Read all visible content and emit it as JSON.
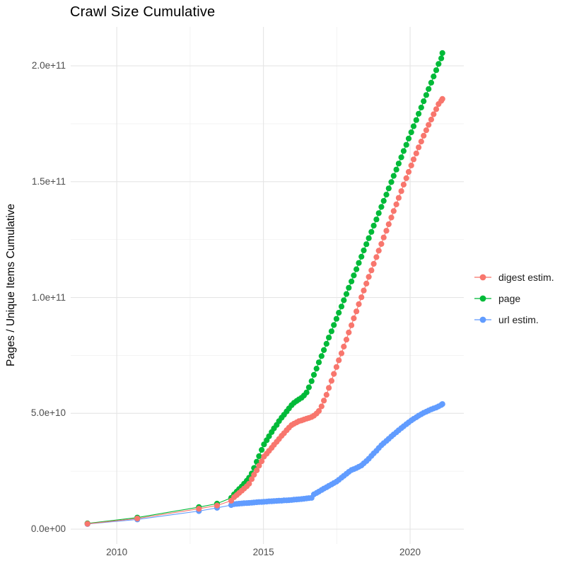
{
  "title": "Crawl Size Cumulative",
  "ylabel": "Pages / Unique Items Cumulative",
  "colors": {
    "digest_estim": "#F8766D",
    "page": "#00BA38",
    "url_estim": "#619CFF",
    "grid_major": "#E5E5E5",
    "grid_minor": "#F2F2F2",
    "tick_label": "#4d4d4d",
    "background": "#ffffff"
  },
  "legend": {
    "items": [
      {
        "id": "digest-estim",
        "label": "digest estim.",
        "color": "#F8766D"
      },
      {
        "id": "page",
        "label": "page",
        "color": "#00BA38"
      },
      {
        "id": "url-estim",
        "label": "url estim.",
        "color": "#619CFF"
      }
    ]
  },
  "chart_data": {
    "type": "scatter",
    "title": "Crawl Size Cumulative",
    "xlabel": "",
    "ylabel": "Pages / Unique Items Cumulative",
    "legend_position": "right",
    "grid": true,
    "unit_note": "y values stored in billions (1e9); axis shows scientific notation",
    "xlim": [
      2008.43,
      2021.83
    ],
    "ylim_e9": [
      -6.4,
      216.8
    ],
    "x_ticks": [
      {
        "value": 2010,
        "label": "2010"
      },
      {
        "value": 2015,
        "label": "2015"
      },
      {
        "value": 2020,
        "label": "2020"
      }
    ],
    "x_minor_ticks": [
      2012.5,
      2017.5
    ],
    "y_ticks": [
      {
        "value_e9": 0,
        "label": "0.0e+00"
      },
      {
        "value_e9": 50,
        "label": "5.0e+10"
      },
      {
        "value_e9": 100,
        "label": "1.0e+11"
      },
      {
        "value_e9": 150,
        "label": "1.5e+11"
      },
      {
        "value_e9": 200,
        "label": "2.0e+11"
      }
    ],
    "y_minor_ticks_e9": [
      25,
      75,
      125,
      175
    ],
    "draw_order": [
      2,
      1,
      0
    ],
    "point_radius": 4.1,
    "series": [
      {
        "name": "digest estim.",
        "color": "#F8766D",
        "points": [
          [
            2009.0,
            2.3
          ],
          [
            2010.7,
            4.6
          ],
          [
            2012.8,
            8.8
          ],
          [
            2013.42,
            10.2
          ],
          [
            2013.9,
            12.3
          ],
          [
            2014.0,
            13.8
          ],
          [
            2014.09,
            14.7
          ],
          [
            2014.17,
            15.6
          ],
          [
            2014.26,
            16.6
          ],
          [
            2014.34,
            17.5
          ],
          [
            2014.43,
            18.5
          ],
          [
            2014.51,
            19.6
          ],
          [
            2014.6,
            21.6
          ],
          [
            2014.68,
            23.5
          ],
          [
            2014.77,
            25.4
          ],
          [
            2014.85,
            27.4
          ],
          [
            2014.94,
            29.3
          ],
          [
            2015.02,
            31.3
          ],
          [
            2015.11,
            32.6
          ],
          [
            2015.19,
            33.8
          ],
          [
            2015.28,
            35.1
          ],
          [
            2015.36,
            36.4
          ],
          [
            2015.45,
            37.7
          ],
          [
            2015.53,
            38.9
          ],
          [
            2015.62,
            40.3
          ],
          [
            2015.7,
            41.4
          ],
          [
            2015.79,
            42.7
          ],
          [
            2015.87,
            43.8
          ],
          [
            2015.96,
            44.9
          ],
          [
            2016.04,
            45.5
          ],
          [
            2016.13,
            46.1
          ],
          [
            2016.21,
            46.6
          ],
          [
            2016.3,
            46.9
          ],
          [
            2016.38,
            47.3
          ],
          [
            2016.47,
            47.7
          ],
          [
            2016.55,
            48.0
          ],
          [
            2016.64,
            48.4
          ],
          [
            2016.72,
            49.0
          ],
          [
            2016.81,
            49.9
          ],
          [
            2016.89,
            51.0
          ],
          [
            2016.98,
            53.0
          ],
          [
            2017.06,
            55.5
          ],
          [
            2017.15,
            58.0
          ],
          [
            2017.23,
            61.0
          ],
          [
            2017.32,
            64.0
          ],
          [
            2017.4,
            67.0
          ],
          [
            2017.49,
            70.0
          ],
          [
            2017.57,
            72.9
          ],
          [
            2017.66,
            75.9
          ],
          [
            2017.74,
            78.8
          ],
          [
            2017.83,
            81.8
          ],
          [
            2017.91,
            84.9
          ],
          [
            2018.0,
            88.0
          ],
          [
            2018.08,
            91.0
          ],
          [
            2018.17,
            94.0
          ],
          [
            2018.25,
            97.1
          ],
          [
            2018.34,
            100.1
          ],
          [
            2018.42,
            103.0
          ],
          [
            2018.51,
            106.0
          ],
          [
            2018.59,
            108.9
          ],
          [
            2018.68,
            111.7
          ],
          [
            2018.76,
            114.5
          ],
          [
            2018.85,
            117.4
          ],
          [
            2018.93,
            120.2
          ],
          [
            2019.02,
            123.1
          ],
          [
            2019.1,
            125.9
          ],
          [
            2019.19,
            128.8
          ],
          [
            2019.27,
            131.6
          ],
          [
            2019.36,
            134.5
          ],
          [
            2019.44,
            137.3
          ],
          [
            2019.53,
            140.2
          ],
          [
            2019.61,
            143.0
          ],
          [
            2019.7,
            145.9
          ],
          [
            2019.78,
            148.7
          ],
          [
            2019.87,
            151.5
          ],
          [
            2019.95,
            154.2
          ],
          [
            2020.04,
            157.0
          ],
          [
            2020.12,
            159.6
          ],
          [
            2020.21,
            162.2
          ],
          [
            2020.29,
            164.8
          ],
          [
            2020.38,
            167.3
          ],
          [
            2020.46,
            169.8
          ],
          [
            2020.55,
            172.2
          ],
          [
            2020.63,
            174.5
          ],
          [
            2020.72,
            176.8
          ],
          [
            2020.8,
            179.1
          ],
          [
            2020.89,
            181.3
          ],
          [
            2020.97,
            183.5
          ],
          [
            2021.06,
            184.9
          ],
          [
            2021.1,
            185.7
          ]
        ]
      },
      {
        "name": "page",
        "color": "#00BA38",
        "points": [
          [
            2009.0,
            2.5
          ],
          [
            2010.7,
            5.0
          ],
          [
            2012.8,
            9.5
          ],
          [
            2013.42,
            11.0
          ],
          [
            2013.9,
            13.5
          ],
          [
            2014.0,
            15.0
          ],
          [
            2014.09,
            16.2
          ],
          [
            2014.17,
            17.3
          ],
          [
            2014.26,
            18.4
          ],
          [
            2014.34,
            19.6
          ],
          [
            2014.43,
            20.9
          ],
          [
            2014.51,
            22.2
          ],
          [
            2014.6,
            24.0
          ],
          [
            2014.68,
            26.4
          ],
          [
            2014.77,
            29.1
          ],
          [
            2014.85,
            31.5
          ],
          [
            2014.94,
            34.2
          ],
          [
            2015.02,
            36.6
          ],
          [
            2015.11,
            38.4
          ],
          [
            2015.19,
            40.1
          ],
          [
            2015.28,
            41.9
          ],
          [
            2015.36,
            43.5
          ],
          [
            2015.45,
            45.0
          ],
          [
            2015.53,
            46.6
          ],
          [
            2015.62,
            48.1
          ],
          [
            2015.7,
            49.4
          ],
          [
            2015.79,
            50.8
          ],
          [
            2015.87,
            52.1
          ],
          [
            2015.96,
            53.5
          ],
          [
            2016.04,
            54.5
          ],
          [
            2016.13,
            55.3
          ],
          [
            2016.21,
            56.0
          ],
          [
            2016.3,
            56.7
          ],
          [
            2016.38,
            57.7
          ],
          [
            2016.47,
            59.0
          ],
          [
            2016.55,
            61.2
          ],
          [
            2016.64,
            63.9
          ],
          [
            2016.72,
            66.6
          ],
          [
            2016.81,
            69.3
          ],
          [
            2016.89,
            72.0
          ],
          [
            2016.98,
            74.7
          ],
          [
            2017.06,
            77.3
          ],
          [
            2017.15,
            80.0
          ],
          [
            2017.23,
            82.7
          ],
          [
            2017.32,
            85.4
          ],
          [
            2017.4,
            88.1
          ],
          [
            2017.49,
            90.8
          ],
          [
            2017.57,
            93.4
          ],
          [
            2017.66,
            96.1
          ],
          [
            2017.74,
            98.8
          ],
          [
            2017.83,
            101.5
          ],
          [
            2017.91,
            104.2
          ],
          [
            2018.0,
            106.9
          ],
          [
            2018.08,
            109.5
          ],
          [
            2018.17,
            112.2
          ],
          [
            2018.25,
            114.9
          ],
          [
            2018.34,
            117.6
          ],
          [
            2018.42,
            120.3
          ],
          [
            2018.51,
            123.0
          ],
          [
            2018.59,
            125.6
          ],
          [
            2018.68,
            128.3
          ],
          [
            2018.76,
            131.0
          ],
          [
            2018.85,
            133.7
          ],
          [
            2018.93,
            136.4
          ],
          [
            2019.02,
            139.1
          ],
          [
            2019.1,
            141.7
          ],
          [
            2019.19,
            144.4
          ],
          [
            2019.27,
            147.1
          ],
          [
            2019.36,
            149.8
          ],
          [
            2019.44,
            152.5
          ],
          [
            2019.53,
            155.2
          ],
          [
            2019.61,
            157.8
          ],
          [
            2019.7,
            160.5
          ],
          [
            2019.78,
            163.2
          ],
          [
            2019.87,
            165.9
          ],
          [
            2019.95,
            168.6
          ],
          [
            2020.04,
            171.3
          ],
          [
            2020.12,
            173.9
          ],
          [
            2020.21,
            176.6
          ],
          [
            2020.29,
            179.3
          ],
          [
            2020.38,
            182.0
          ],
          [
            2020.46,
            184.7
          ],
          [
            2020.55,
            187.4
          ],
          [
            2020.63,
            190.0
          ],
          [
            2020.72,
            192.7
          ],
          [
            2020.8,
            195.4
          ],
          [
            2020.89,
            198.1
          ],
          [
            2020.97,
            200.8
          ],
          [
            2021.06,
            203.2
          ],
          [
            2021.1,
            205.5
          ]
        ]
      },
      {
        "name": "url estim.",
        "color": "#619CFF",
        "points": [
          [
            2009.0,
            2.2
          ],
          [
            2010.7,
            4.2
          ],
          [
            2012.8,
            7.8
          ],
          [
            2013.42,
            9.2
          ],
          [
            2013.9,
            10.4
          ],
          [
            2014.0,
            10.8
          ],
          [
            2014.09,
            10.9
          ],
          [
            2014.17,
            11.0
          ],
          [
            2014.26,
            11.1
          ],
          [
            2014.34,
            11.2
          ],
          [
            2014.43,
            11.25
          ],
          [
            2014.51,
            11.3
          ],
          [
            2014.6,
            11.4
          ],
          [
            2014.68,
            11.5
          ],
          [
            2014.77,
            11.6
          ],
          [
            2014.85,
            11.7
          ],
          [
            2014.94,
            11.75
          ],
          [
            2015.02,
            11.8
          ],
          [
            2015.11,
            11.9
          ],
          [
            2015.19,
            12.0
          ],
          [
            2015.28,
            12.05
          ],
          [
            2015.36,
            12.1
          ],
          [
            2015.45,
            12.2
          ],
          [
            2015.53,
            12.25
          ],
          [
            2015.62,
            12.3
          ],
          [
            2015.7,
            12.4
          ],
          [
            2015.79,
            12.45
          ],
          [
            2015.87,
            12.5
          ],
          [
            2015.96,
            12.6
          ],
          [
            2016.04,
            12.7
          ],
          [
            2016.13,
            12.8
          ],
          [
            2016.21,
            12.9
          ],
          [
            2016.3,
            13.0
          ],
          [
            2016.38,
            13.1
          ],
          [
            2016.47,
            13.25
          ],
          [
            2016.55,
            13.4
          ],
          [
            2016.64,
            13.5
          ],
          [
            2016.72,
            15.0
          ],
          [
            2016.81,
            15.6
          ],
          [
            2016.89,
            16.2
          ],
          [
            2016.98,
            16.9
          ],
          [
            2017.06,
            17.5
          ],
          [
            2017.15,
            18.1
          ],
          [
            2017.23,
            18.7
          ],
          [
            2017.32,
            19.3
          ],
          [
            2017.4,
            19.9
          ],
          [
            2017.49,
            20.5
          ],
          [
            2017.57,
            21.3
          ],
          [
            2017.66,
            22.2
          ],
          [
            2017.74,
            23.0
          ],
          [
            2017.83,
            23.9
          ],
          [
            2017.91,
            24.7
          ],
          [
            2018.0,
            25.5
          ],
          [
            2018.08,
            25.9
          ],
          [
            2018.17,
            26.4
          ],
          [
            2018.25,
            26.9
          ],
          [
            2018.34,
            27.5
          ],
          [
            2018.42,
            28.4
          ],
          [
            2018.51,
            29.4
          ],
          [
            2018.59,
            30.4
          ],
          [
            2018.68,
            31.6
          ],
          [
            2018.76,
            32.7
          ],
          [
            2018.85,
            33.8
          ],
          [
            2018.93,
            35.0
          ],
          [
            2019.02,
            36.2
          ],
          [
            2019.1,
            37.1
          ],
          [
            2019.19,
            38.1
          ],
          [
            2019.27,
            39.0
          ],
          [
            2019.36,
            40.0
          ],
          [
            2019.44,
            40.9
          ],
          [
            2019.53,
            41.8
          ],
          [
            2019.61,
            42.7
          ],
          [
            2019.7,
            43.6
          ],
          [
            2019.78,
            44.4
          ],
          [
            2019.87,
            45.3
          ],
          [
            2019.95,
            46.1
          ],
          [
            2020.04,
            46.9
          ],
          [
            2020.12,
            47.6
          ],
          [
            2020.21,
            48.3
          ],
          [
            2020.29,
            49.0
          ],
          [
            2020.38,
            49.6
          ],
          [
            2020.46,
            50.2
          ],
          [
            2020.55,
            50.7
          ],
          [
            2020.63,
            51.2
          ],
          [
            2020.72,
            51.7
          ],
          [
            2020.8,
            52.1
          ],
          [
            2020.89,
            52.5
          ],
          [
            2020.97,
            53.0
          ],
          [
            2021.06,
            53.6
          ],
          [
            2021.1,
            54.0
          ]
        ]
      }
    ]
  }
}
